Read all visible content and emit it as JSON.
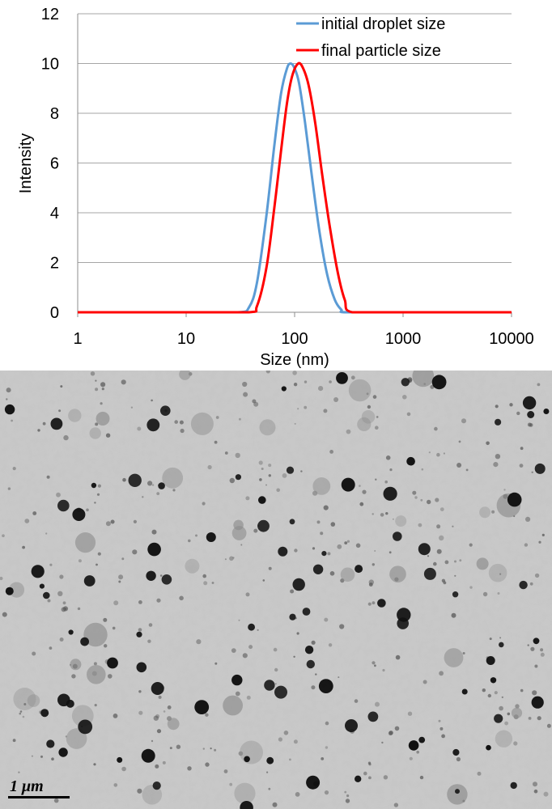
{
  "chart_data": {
    "type": "line",
    "xlabel": "Size (nm)",
    "ylabel": "Intensity",
    "xscale": "log",
    "xlim": [
      1,
      10000
    ],
    "ylim": [
      0,
      12
    ],
    "x_ticks": [
      "1",
      "10",
      "100",
      "1000",
      "10000"
    ],
    "y_ticks": [
      "0",
      "2",
      "4",
      "6",
      "8",
      "10",
      "12"
    ],
    "grid": "horizontal",
    "legend_position": "top-right",
    "series": [
      {
        "name": "initial droplet size",
        "color": "#5b9bd5",
        "x": [
          1,
          10,
          30,
          38,
          45,
          55,
          65,
          75,
          85,
          92,
          100,
          110,
          125,
          145,
          170,
          200,
          235,
          270,
          300,
          1000,
          10000
        ],
        "y": [
          0,
          0,
          0,
          0.2,
          1.2,
          3.9,
          6.7,
          8.8,
          9.8,
          10.0,
          9.8,
          9.2,
          7.6,
          5.4,
          3.2,
          1.5,
          0.5,
          0.1,
          0,
          0,
          0
        ]
      },
      {
        "name": "final particle size",
        "color": "#ff0000",
        "x": [
          1,
          10,
          38,
          45,
          55,
          65,
          75,
          85,
          95,
          108,
          120,
          135,
          155,
          180,
          210,
          250,
          290,
          340,
          1000,
          10000
        ],
        "y": [
          0,
          0,
          0,
          0.25,
          1.8,
          4.2,
          6.5,
          8.4,
          9.5,
          10.0,
          9.8,
          9.1,
          7.6,
          5.5,
          3.5,
          1.6,
          0.5,
          0,
          0,
          0
        ]
      }
    ]
  },
  "micrograph": {
    "scale_bar_label": "1 μm",
    "background_color": "#c8c8c8",
    "particle_color": "#111111"
  }
}
